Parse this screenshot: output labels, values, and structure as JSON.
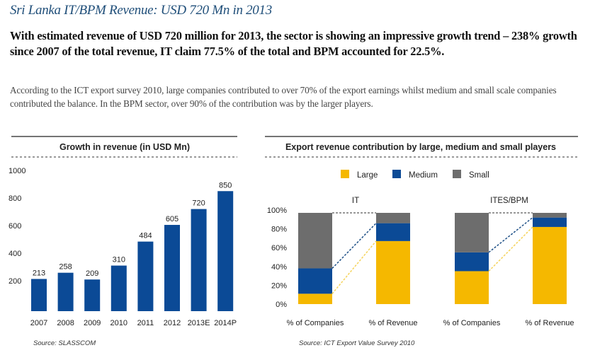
{
  "title": "Sri Lanka IT/BPM Revenue: USD 720 Mn in 2013",
  "lead": "With estimated revenue of USD 720 million for 2013, the sector is showing an impressive growth trend – 238% growth since 2007 of the total revenue, IT claim 77.5% of the total and BPM accounted for 22.5%.",
  "body": "According to the ICT export survey 2010, large companies contributed to over 70% of the export earnings whilst medium and small scale companies contributed the balance. In the BPM sector, over 90% of the contribution was by the larger players.",
  "chart_data": [
    {
      "type": "bar",
      "title": "Growth in revenue (in USD Mn)",
      "categories": [
        "2007",
        "2008",
        "2009",
        "2010",
        "2011",
        "2012",
        "2013E",
        "2014P"
      ],
      "values": [
        213,
        258,
        209,
        310,
        484,
        605,
        720,
        850
      ],
      "yticks": [
        "200",
        "400",
        "600",
        "800",
        "1000"
      ],
      "ylim": [
        0,
        1000
      ],
      "color": "#0b4a96",
      "source": "Source: SLASSCOM",
      "grid": false
    },
    {
      "type": "bar",
      "stacked": true,
      "title": "Export revenue contribution by large, medium and small players",
      "legend": [
        {
          "name": "Large",
          "color": "#f5b800"
        },
        {
          "name": "Medium",
          "color": "#0b4a96"
        },
        {
          "name": "Small",
          "color": "#6d6d6d"
        }
      ],
      "legend_position": "top",
      "yticks": [
        "0%",
        "20%",
        "40%",
        "60%",
        "80%",
        "100%"
      ],
      "ylim": [
        0,
        100
      ],
      "panels": [
        {
          "name": "IT",
          "categories": [
            "% of Companies",
            "% of Revenue"
          ],
          "series": [
            {
              "name": "Large",
              "values": [
                11,
                67
              ]
            },
            {
              "name": "Medium",
              "values": [
                27,
                19
              ]
            },
            {
              "name": "Small",
              "values": [
                59,
                11
              ]
            }
          ]
        },
        {
          "name": "ITES/BPM",
          "categories": [
            "% of Companies",
            "% of Revenue"
          ],
          "series": [
            {
              "name": "Large",
              "values": [
                35,
                82
              ]
            },
            {
              "name": "Medium",
              "values": [
                20,
                10
              ]
            },
            {
              "name": "Small",
              "values": [
                42,
                5
              ]
            }
          ]
        }
      ],
      "source": "Source: ICT Export Value Survey 2010",
      "grid": false
    }
  ]
}
